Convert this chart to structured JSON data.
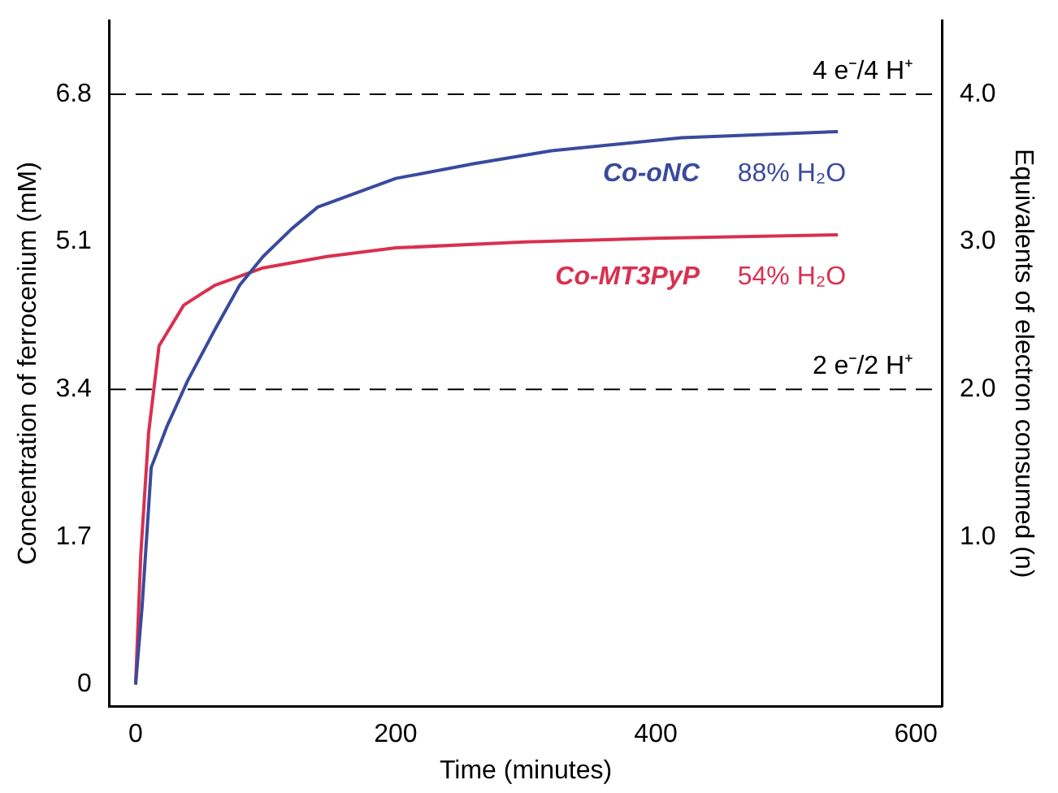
{
  "chart_data": {
    "type": "line",
    "xlabel": "Time (minutes)",
    "ylabel": "Concentration of ferrocenium (mM)",
    "y2label": "Equivalents of electron consumed (n)",
    "xlim": [
      -20,
      620
    ],
    "xticks": [
      0,
      200,
      400,
      600
    ],
    "ylim": [
      -0.25,
      7.65
    ],
    "yticks": [
      0,
      1.7,
      3.4,
      5.1,
      6.8
    ],
    "y2lim": [
      -0.147,
      4.5
    ],
    "y2ticks": [
      {
        "value": 1,
        "label": "1.0"
      },
      {
        "value": 2,
        "label": "2.0"
      },
      {
        "value": 3,
        "label": "3.0"
      },
      {
        "value": 4,
        "label": "4.0"
      }
    ],
    "grid": false,
    "legend": false,
    "marker": "none",
    "line_style": "solid",
    "ref_lines": [
      {
        "axis": "y",
        "value": 6.8,
        "label": "4 e⁻/4 H⁺",
        "color": "#000000",
        "line_style": "dashed"
      },
      {
        "axis": "y",
        "value": 3.4,
        "label": "2 e⁻/2 H⁺",
        "color": "#000000",
        "line_style": "dashed"
      }
    ],
    "annotations": [
      "88% H₂O",
      "54% H₂O"
    ],
    "series": [
      {
        "name": "Co-oNC",
        "color": "#3a4a9c",
        "x": [
          0,
          5,
          12,
          24,
          40,
          61,
          80,
          98,
          120,
          140,
          200,
          260,
          320,
          420,
          540
        ],
        "values": [
          0,
          0.9,
          2.5,
          2.97,
          3.5,
          4.09,
          4.6,
          4.93,
          5.25,
          5.5,
          5.83,
          6.0,
          6.15,
          6.3,
          6.37
        ]
      },
      {
        "name": "Co-MT3PyP",
        "color": "#d9304f",
        "x": [
          0,
          4,
          10,
          18,
          37,
          61,
          98,
          147,
          200,
          300,
          400,
          540
        ],
        "values": [
          0,
          1.5,
          2.9,
          3.9,
          4.37,
          4.6,
          4.8,
          4.93,
          5.03,
          5.1,
          5.14,
          5.18
        ]
      }
    ]
  }
}
